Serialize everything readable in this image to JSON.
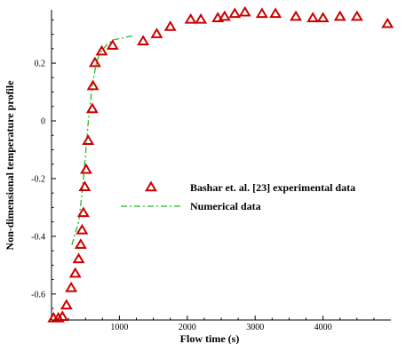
{
  "chart_data": {
    "type": "line",
    "xlabel": "Flow time (s)",
    "ylabel": "Non-dimensional temperature profile",
    "xlim": [
      0,
      5000
    ],
    "ylim": [
      -0.69,
      0.385
    ],
    "x_ticks": [
      1000,
      2000,
      3000,
      4000
    ],
    "x_tick_labels": [
      "1000",
      "2000",
      "3000",
      "4000"
    ],
    "y_ticks": [
      -0.6,
      -0.4,
      -0.2,
      0,
      0.2
    ],
    "y_tick_labels": [
      "-0.6",
      "-0.4",
      "-0.2",
      "0",
      "0.2"
    ],
    "grid": false,
    "legend_position": "center-right",
    "series": [
      {
        "name": "Bashar et. al. [23] experimental data",
        "kind": "scatter",
        "marker": "triangle",
        "color": "#cc0000",
        "points": [
          [
            30,
            -0.685
          ],
          [
            100,
            -0.685
          ],
          [
            160,
            -0.68
          ],
          [
            220,
            -0.64
          ],
          [
            290,
            -0.58
          ],
          [
            350,
            -0.53
          ],
          [
            400,
            -0.48
          ],
          [
            430,
            -0.43
          ],
          [
            450,
            -0.38
          ],
          [
            470,
            -0.32
          ],
          [
            490,
            -0.23
          ],
          [
            510,
            -0.17
          ],
          [
            540,
            -0.07
          ],
          [
            600,
            0.04
          ],
          [
            610,
            0.12
          ],
          [
            640,
            0.2
          ],
          [
            740,
            0.24
          ],
          [
            900,
            0.26
          ],
          [
            1350,
            0.275
          ],
          [
            1550,
            0.3
          ],
          [
            1750,
            0.325
          ],
          [
            2050,
            0.35
          ],
          [
            2200,
            0.35
          ],
          [
            2450,
            0.355
          ],
          [
            2550,
            0.36
          ],
          [
            2700,
            0.37
          ],
          [
            2850,
            0.375
          ],
          [
            3100,
            0.37
          ],
          [
            3300,
            0.37
          ],
          [
            3600,
            0.36
          ],
          [
            3850,
            0.355
          ],
          [
            4000,
            0.355
          ],
          [
            4250,
            0.36
          ],
          [
            4500,
            0.36
          ],
          [
            4950,
            0.335
          ]
        ]
      },
      {
        "name": "Numerical data",
        "kind": "line",
        "dash": "dash-dot",
        "color": "#22bb22",
        "points": [
          [
            300,
            -0.43
          ],
          [
            400,
            -0.35
          ],
          [
            450,
            -0.25
          ],
          [
            500,
            -0.12
          ],
          [
            550,
            0.02
          ],
          [
            600,
            0.12
          ],
          [
            650,
            0.19
          ],
          [
            700,
            0.23
          ],
          [
            800,
            0.26
          ],
          [
            900,
            0.28
          ],
          [
            1000,
            0.285
          ],
          [
            1100,
            0.29
          ],
          [
            1200,
            0.295
          ]
        ]
      }
    ]
  }
}
